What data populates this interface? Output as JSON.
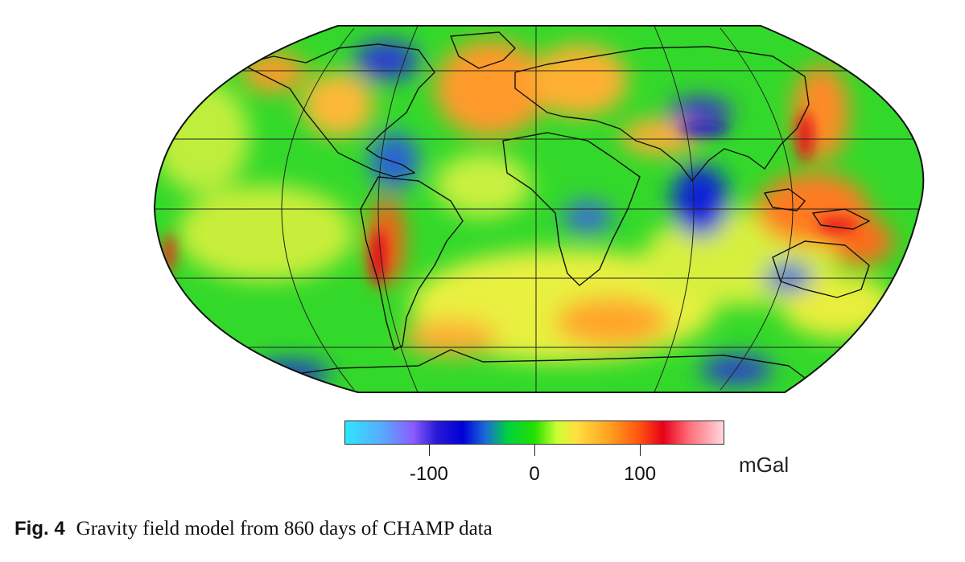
{
  "colorbar": {
    "unit": "mGal",
    "range": [
      -180,
      180
    ],
    "ticks": [
      {
        "value": -100,
        "label": "-100"
      },
      {
        "value": 0,
        "label": "0"
      },
      {
        "value": 100,
        "label": "100"
      }
    ],
    "colors": [
      "#2ee6ff",
      "#8a5cff",
      "#0000d8",
      "#00d240",
      "#ccff33",
      "#ffe040",
      "#ffa020",
      "#ff5010",
      "#e8001a",
      "#ffd7dc"
    ]
  },
  "map": {
    "projection": "robinson",
    "center_longitude": 0,
    "graticule": {
      "longitudes": [
        -120,
        -60,
        0,
        60,
        120
      ],
      "latitudes": [
        -60,
        -30,
        0,
        30,
        60
      ]
    }
  },
  "caption": {
    "label": "Fig. 4",
    "text": "Gravity field model from 860 days of CHAMP data"
  }
}
